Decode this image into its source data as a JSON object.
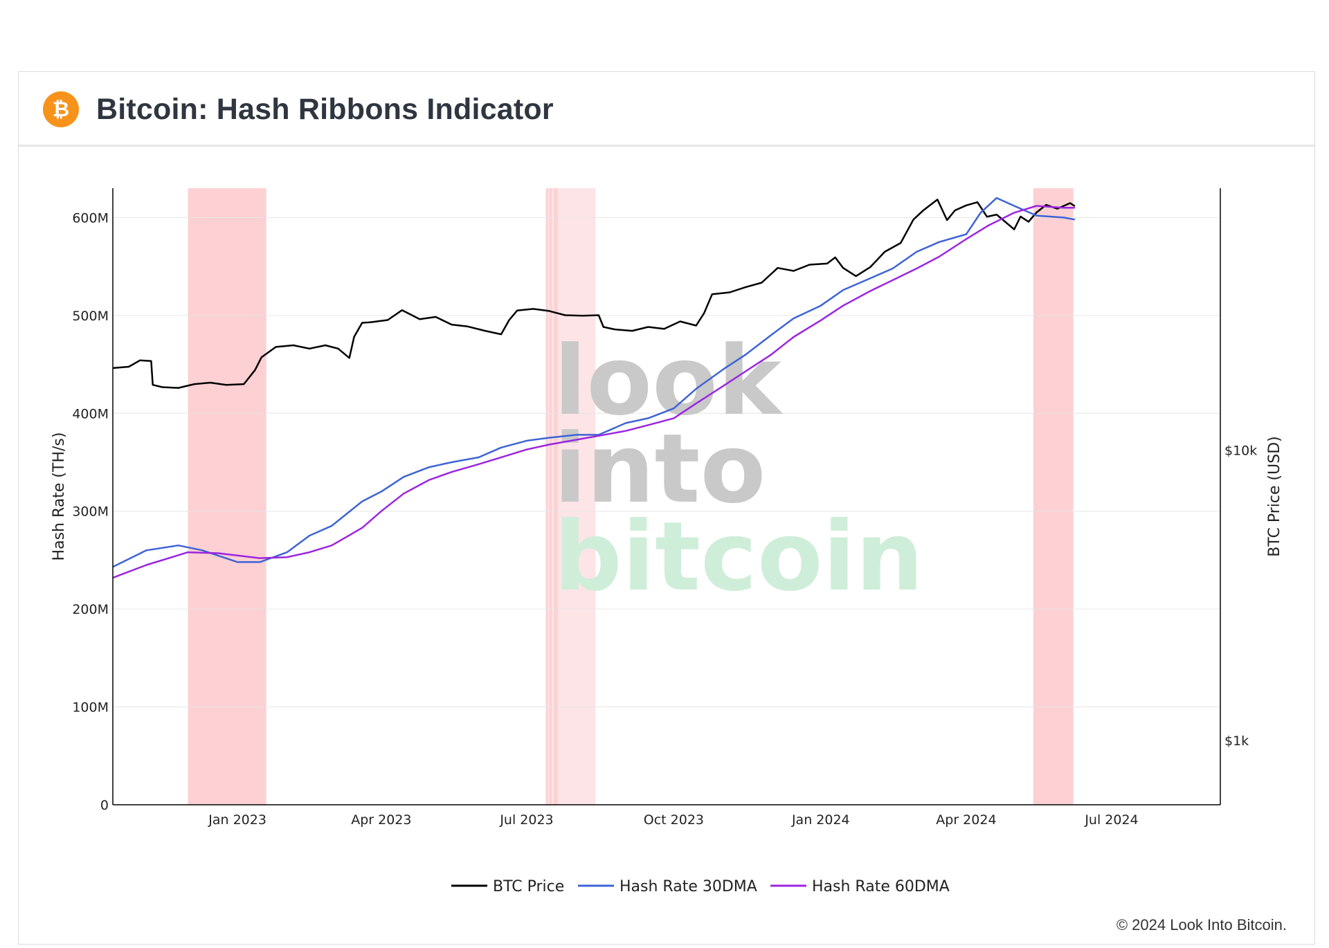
{
  "header": {
    "title": "Bitcoin: Hash Ribbons Indicator",
    "logo_icon": "bitcoin-icon",
    "logo_symbol": "₿",
    "logo_color": "#f7931a"
  },
  "footer": {
    "copyright": "© 2024 Look Into Bitcoin."
  },
  "watermark": {
    "line1": "look",
    "line2": "into",
    "line3": "bitcoin"
  },
  "colors": {
    "btc_price": "#000000",
    "hash_30dma": "#3e63d6",
    "hash_60dma": "#9b25e0",
    "capitulation_band": "#fdd0d3",
    "capitulation_band_light": "#fde4e6",
    "watermark_gray": "#c9c9c9",
    "watermark_green": "#cfeed9"
  },
  "chart_data": {
    "type": "line",
    "title": "",
    "xlabel": "",
    "ylabel": "Hash Rate (TH/s)",
    "y2label": "BTC Price (USD)",
    "x_range": [
      "2022-10-15",
      "2024-09-07"
    ],
    "ylim": [
      0,
      630000000
    ],
    "y2_scale": "log",
    "y2lim": [
      600,
      80000
    ],
    "x_ticks": [
      {
        "date": "2023-01-01",
        "label": "Jan 2023"
      },
      {
        "date": "2023-04-01",
        "label": "Apr 2023"
      },
      {
        "date": "2023-07-01",
        "label": "Jul 2023"
      },
      {
        "date": "2023-10-01",
        "label": "Oct 2023"
      },
      {
        "date": "2024-01-01",
        "label": "Jan 2024"
      },
      {
        "date": "2024-04-01",
        "label": "Apr 2024"
      },
      {
        "date": "2024-07-01",
        "label": "Jul 2024"
      }
    ],
    "y_ticks": [
      {
        "value": 0,
        "label": "0"
      },
      {
        "value": 100000000,
        "label": "100M"
      },
      {
        "value": 200000000,
        "label": "200M"
      },
      {
        "value": 300000000,
        "label": "300M"
      },
      {
        "value": 400000000,
        "label": "400M"
      },
      {
        "value": 500000000,
        "label": "500M"
      },
      {
        "value": 600000000,
        "label": "600M"
      }
    ],
    "y2_ticks": [
      {
        "value": 1000,
        "label": "$1k"
      },
      {
        "value": 10000,
        "label": "$10k"
      }
    ],
    "grid": true,
    "legend_position": "bottom-center",
    "bands": [
      {
        "start": "2022-12-01",
        "end": "2023-01-19",
        "shade": "dark"
      },
      {
        "start": "2023-07-13",
        "end": "2023-08-13",
        "shade": "mixed"
      },
      {
        "start": "2024-05-13",
        "end": "2024-06-07",
        "shade": "dark"
      }
    ],
    "series": [
      {
        "name": "BTC Price",
        "axis": "y2",
        "color": "#000000",
        "x": [
          "2022-10-15",
          "2022-10-25",
          "2022-11-01",
          "2022-11-08",
          "2022-11-09",
          "2022-11-15",
          "2022-11-25",
          "2022-12-05",
          "2022-12-15",
          "2022-12-25",
          "2023-01-05",
          "2023-01-12",
          "2023-01-16",
          "2023-01-25",
          "2023-02-05",
          "2023-02-15",
          "2023-02-25",
          "2023-03-05",
          "2023-03-12",
          "2023-03-15",
          "2023-03-20",
          "2023-03-25",
          "2023-04-05",
          "2023-04-14",
          "2023-04-25",
          "2023-05-05",
          "2023-05-15",
          "2023-05-25",
          "2023-06-05",
          "2023-06-15",
          "2023-06-20",
          "2023-06-25",
          "2023-07-05",
          "2023-07-15",
          "2023-07-25",
          "2023-08-05",
          "2023-08-15",
          "2023-08-18",
          "2023-08-25",
          "2023-09-05",
          "2023-09-15",
          "2023-09-25",
          "2023-10-05",
          "2023-10-15",
          "2023-10-20",
          "2023-10-25",
          "2023-11-05",
          "2023-11-15",
          "2023-11-25",
          "2023-12-05",
          "2023-12-15",
          "2023-12-25",
          "2024-01-05",
          "2024-01-10",
          "2024-01-15",
          "2024-01-23",
          "2024-02-01",
          "2024-02-10",
          "2024-02-20",
          "2024-02-28",
          "2024-03-05",
          "2024-03-14",
          "2024-03-20",
          "2024-03-25",
          "2024-04-01",
          "2024-04-08",
          "2024-04-14",
          "2024-04-20",
          "2024-05-01",
          "2024-05-05",
          "2024-05-10",
          "2024-05-15",
          "2024-05-21",
          "2024-05-28",
          "2024-06-05",
          "2024-06-08"
        ],
        "values": [
          19200,
          19400,
          20400,
          20300,
          16800,
          16500,
          16400,
          16900,
          17100,
          16800,
          16900,
          18900,
          20900,
          22700,
          23000,
          22400,
          23000,
          22400,
          20800,
          24600,
          27500,
          27600,
          28100,
          30400,
          28300,
          28800,
          27100,
          26700,
          25800,
          25100,
          28100,
          30300,
          30700,
          30200,
          29200,
          29100,
          29200,
          26600,
          26100,
          25800,
          26600,
          26200,
          27800,
          26900,
          29700,
          34500,
          35000,
          36500,
          37800,
          42500,
          41500,
          43600,
          44000,
          46200,
          42500,
          39800,
          42800,
          48300,
          51800,
          62400,
          67000,
          73100,
          62100,
          67100,
          69800,
          71600,
          63800,
          64900,
          57700,
          63900,
          61300,
          66000,
          70100,
          68000,
          71100,
          69400
        ]
      },
      {
        "name": "Hash Rate 30DMA",
        "axis": "y",
        "color": "#3e63d6",
        "x": [
          "2022-10-15",
          "2022-11-05",
          "2022-11-25",
          "2022-12-10",
          "2023-01-01",
          "2023-01-15",
          "2023-02-01",
          "2023-02-15",
          "2023-03-01",
          "2023-03-20",
          "2023-04-01",
          "2023-04-15",
          "2023-05-01",
          "2023-05-15",
          "2023-06-01",
          "2023-06-15",
          "2023-07-01",
          "2023-07-15",
          "2023-08-01",
          "2023-08-15",
          "2023-09-01",
          "2023-09-15",
          "2023-10-01",
          "2023-10-15",
          "2023-11-01",
          "2023-11-15",
          "2023-12-01",
          "2023-12-15",
          "2024-01-01",
          "2024-01-15",
          "2024-02-01",
          "2024-02-15",
          "2024-03-01",
          "2024-03-15",
          "2024-04-01",
          "2024-04-10",
          "2024-04-20",
          "2024-05-01",
          "2024-05-15",
          "2024-06-01",
          "2024-06-08"
        ],
        "values": [
          243000000,
          260000000,
          265000000,
          260000000,
          248000000,
          248000000,
          258000000,
          275000000,
          285000000,
          310000000,
          320000000,
          335000000,
          345000000,
          350000000,
          355000000,
          365000000,
          372000000,
          375000000,
          378000000,
          378000000,
          390000000,
          395000000,
          405000000,
          425000000,
          445000000,
          460000000,
          480000000,
          497000000,
          510000000,
          526000000,
          538000000,
          548000000,
          565000000,
          575000000,
          583000000,
          605000000,
          620000000,
          612000000,
          602000000,
          600000000,
          598000000
        ]
      },
      {
        "name": "Hash Rate 60DMA",
        "axis": "y",
        "color": "#9b25e0",
        "x": [
          "2022-10-15",
          "2022-11-05",
          "2022-12-01",
          "2022-12-20",
          "2023-01-15",
          "2023-02-01",
          "2023-02-15",
          "2023-03-01",
          "2023-03-20",
          "2023-04-01",
          "2023-04-15",
          "2023-05-01",
          "2023-05-15",
          "2023-06-01",
          "2023-06-15",
          "2023-07-01",
          "2023-07-15",
          "2023-08-01",
          "2023-08-15",
          "2023-09-01",
          "2023-09-15",
          "2023-10-01",
          "2023-10-15",
          "2023-11-01",
          "2023-11-15",
          "2023-12-01",
          "2023-12-15",
          "2024-01-01",
          "2024-01-15",
          "2024-02-01",
          "2024-02-15",
          "2024-03-01",
          "2024-03-15",
          "2024-04-01",
          "2024-04-15",
          "2024-05-01",
          "2024-05-15",
          "2024-06-01",
          "2024-06-08"
        ],
        "values": [
          232000000,
          245000000,
          258000000,
          257000000,
          252000000,
          253000000,
          258000000,
          265000000,
          283000000,
          300000000,
          318000000,
          332000000,
          340000000,
          348000000,
          355000000,
          363000000,
          368000000,
          373000000,
          377000000,
          382000000,
          388000000,
          395000000,
          410000000,
          428000000,
          443000000,
          460000000,
          478000000,
          495000000,
          510000000,
          525000000,
          536000000,
          548000000,
          560000000,
          578000000,
          592000000,
          605000000,
          612000000,
          610000000,
          610000000
        ]
      }
    ]
  }
}
